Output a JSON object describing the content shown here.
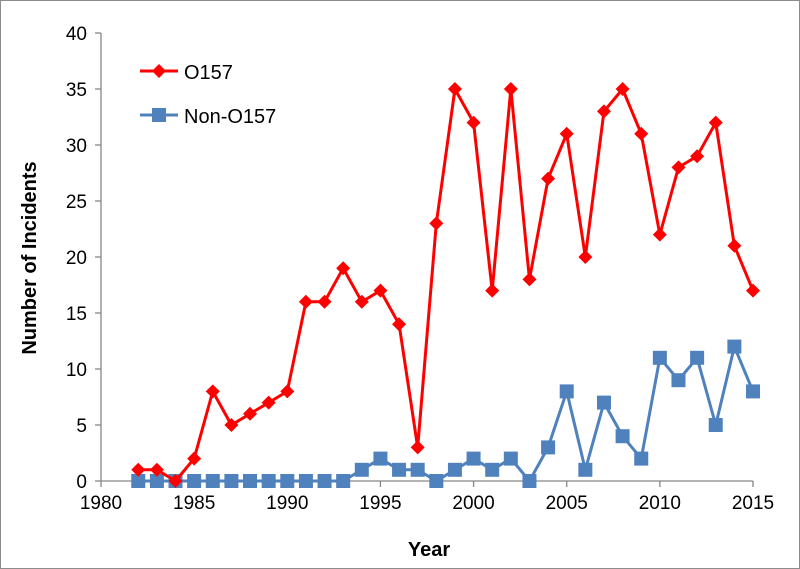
{
  "chart_data": {
    "type": "line",
    "title": "",
    "xlabel": "Year",
    "ylabel": "Number of Incidents",
    "xlim": [
      1980,
      2015
    ],
    "ylim": [
      0,
      40
    ],
    "x_ticks": [
      1980,
      1985,
      1990,
      1995,
      2000,
      2005,
      2010,
      2015
    ],
    "y_ticks": [
      0,
      5,
      10,
      15,
      20,
      25,
      30,
      35,
      40
    ],
    "grid": false,
    "legend_position": "top-left",
    "series": [
      {
        "name": "O157",
        "color": "#ff0000",
        "marker": "diamond",
        "x": [
          1982,
          1983,
          1984,
          1985,
          1986,
          1987,
          1988,
          1989,
          1990,
          1991,
          1992,
          1993,
          1994,
          1995,
          1996,
          1997,
          1998,
          1999,
          2000,
          2001,
          2002,
          2003,
          2004,
          2005,
          2006,
          2007,
          2008,
          2009,
          2010,
          2011,
          2012,
          2013,
          2014,
          2015
        ],
        "values": [
          1,
          1,
          0,
          2,
          8,
          5,
          6,
          7,
          8,
          16,
          16,
          19,
          16,
          17,
          14,
          3,
          23,
          35,
          32,
          17,
          35,
          18,
          27,
          31,
          20,
          33,
          35,
          31,
          22,
          28,
          29,
          32,
          21,
          17
        ]
      },
      {
        "name": "Non-O157",
        "color": "#4f81bd",
        "marker": "square",
        "x": [
          1982,
          1983,
          1984,
          1985,
          1986,
          1987,
          1988,
          1989,
          1990,
          1991,
          1992,
          1993,
          1994,
          1995,
          1996,
          1997,
          1998,
          1999,
          2000,
          2001,
          2002,
          2003,
          2004,
          2005,
          2006,
          2007,
          2008,
          2009,
          2010,
          2011,
          2012,
          2013,
          2014,
          2015
        ],
        "values": [
          0,
          0,
          0,
          0,
          0,
          0,
          0,
          0,
          0,
          0,
          0,
          0,
          1,
          2,
          1,
          1,
          0,
          1,
          2,
          1,
          2,
          0,
          3,
          8,
          1,
          7,
          4,
          2,
          11,
          9,
          11,
          5,
          12,
          8
        ]
      }
    ]
  }
}
